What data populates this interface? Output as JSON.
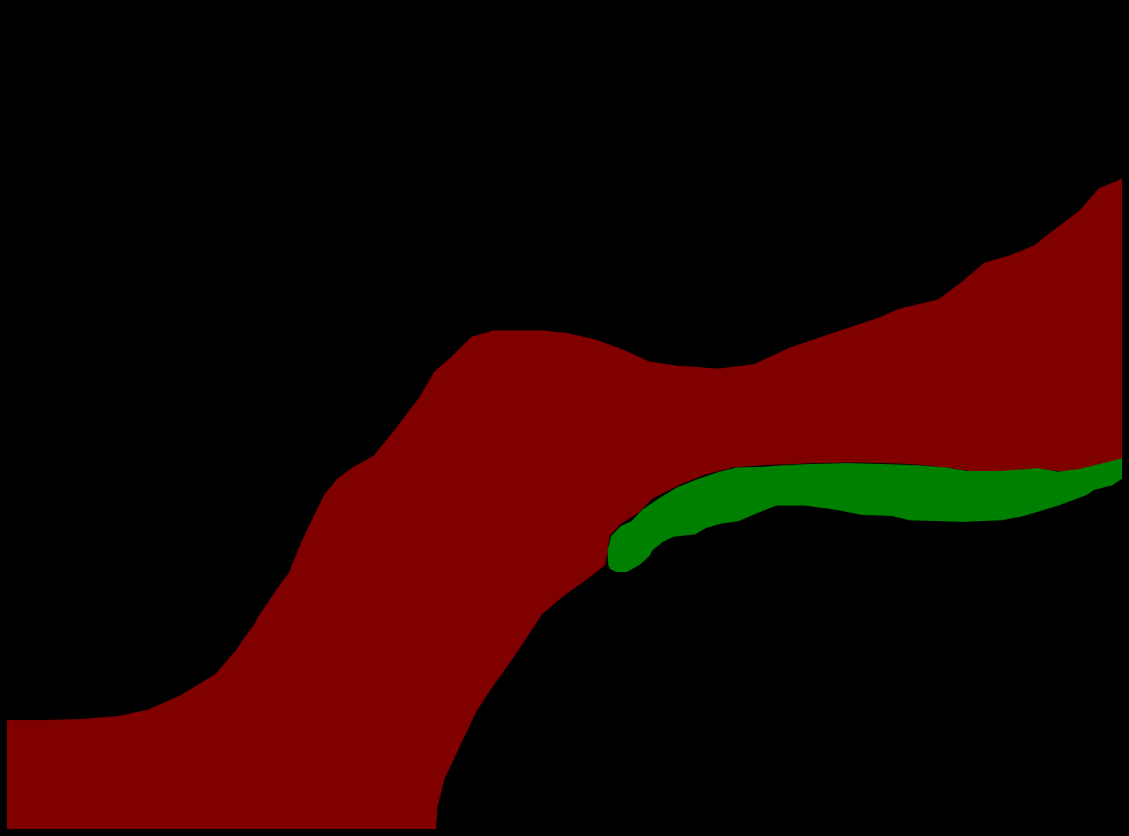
{
  "image": {
    "kind": "segmentation mask",
    "background": "#000000",
    "regions": [
      {
        "id": "large-band",
        "color": "#800000"
      },
      {
        "id": "small-band",
        "color": "#008000"
      }
    ]
  }
}
